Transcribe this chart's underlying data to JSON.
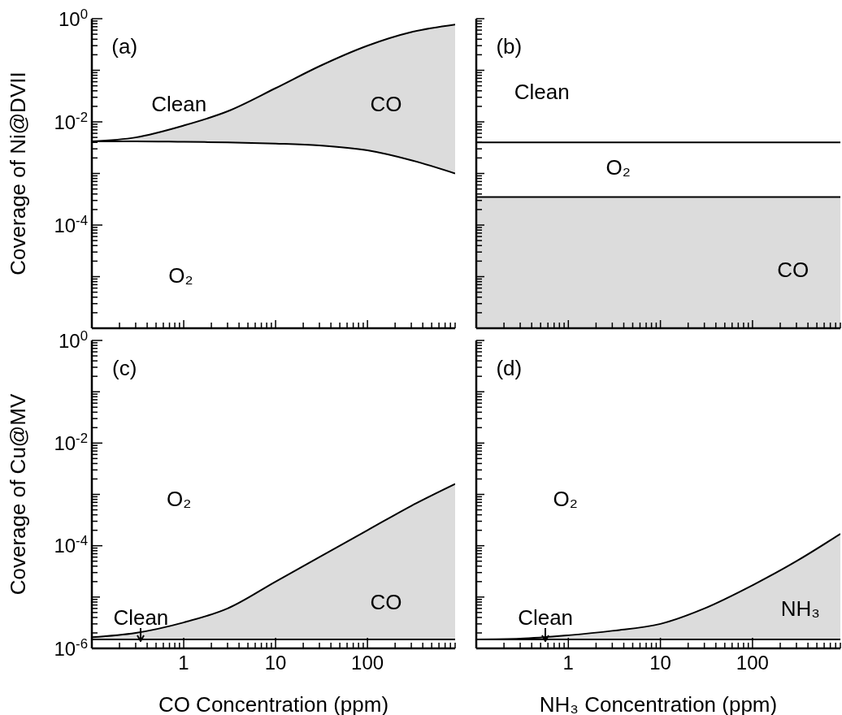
{
  "chart_data": [
    {
      "type": "line",
      "ylabel": "Coverage of Ni@DVII",
      "tick_labels": "y",
      "x": [
        0.1,
        0.3,
        1,
        3,
        10,
        30,
        100,
        300,
        900
      ],
      "xlim": [
        0.1,
        900
      ],
      "ylim": [
        1e-06,
        1
      ],
      "log": "xy",
      "xticks": [
        {
          "value": 0.2,
          "label": null
        },
        {
          "value": 0.3,
          "label": null
        },
        {
          "value": 0.4,
          "label": null
        },
        {
          "value": 0.5,
          "label": null
        },
        {
          "value": 0.6,
          "label": null
        },
        {
          "value": 0.7,
          "label": null
        },
        {
          "value": 0.8,
          "label": null
        },
        {
          "value": 0.9,
          "label": null
        },
        {
          "value": 1,
          "label": null
        },
        {
          "value": 2,
          "label": null
        },
        {
          "value": 3,
          "label": null
        },
        {
          "value": 4,
          "label": null
        },
        {
          "value": 5,
          "label": null
        },
        {
          "value": 6,
          "label": null
        },
        {
          "value": 7,
          "label": null
        },
        {
          "value": 8,
          "label": null
        },
        {
          "value": 9,
          "label": null
        },
        {
          "value": 10,
          "label": null
        },
        {
          "value": 20,
          "label": null
        },
        {
          "value": 30,
          "label": null
        },
        {
          "value": 40,
          "label": null
        },
        {
          "value": 50,
          "label": null
        },
        {
          "value": 60,
          "label": null
        },
        {
          "value": 70,
          "label": null
        },
        {
          "value": 80,
          "label": null
        },
        {
          "value": 90,
          "label": null
        },
        {
          "value": 100,
          "label": null
        },
        {
          "value": 200,
          "label": null
        },
        {
          "value": 300,
          "label": null
        },
        {
          "value": 400,
          "label": null
        },
        {
          "value": 500,
          "label": null
        },
        {
          "value": 600,
          "label": null
        },
        {
          "value": 700,
          "label": null
        },
        {
          "value": 800,
          "label": null
        },
        {
          "value": 900,
          "label": null
        }
      ],
      "yticks": [
        {
          "value": 1e-06,
          "label": null
        },
        {
          "value": 2e-06,
          "label": null
        },
        {
          "value": 3e-06,
          "label": null
        },
        {
          "value": 4e-06,
          "label": null
        },
        {
          "value": 5e-06,
          "label": null
        },
        {
          "value": 6e-06,
          "label": null
        },
        {
          "value": 7e-06,
          "label": null
        },
        {
          "value": 8e-06,
          "label": null
        },
        {
          "value": 9e-06,
          "label": null
        },
        {
          "value": 1e-05,
          "label": null
        },
        {
          "value": 2e-05,
          "label": null
        },
        {
          "value": 3e-05,
          "label": null
        },
        {
          "value": 4e-05,
          "label": null
        },
        {
          "value": 5e-05,
          "label": null
        },
        {
          "value": 6e-05,
          "label": null
        },
        {
          "value": 7e-05,
          "label": null
        },
        {
          "value": 8e-05,
          "label": null
        },
        {
          "value": 9e-05,
          "label": null
        },
        {
          "value": 0.0001,
          "label": "10$^{-4}$"
        },
        {
          "value": 0.0002,
          "label": null
        },
        {
          "value": 0.0003,
          "label": null
        },
        {
          "value": 0.0004,
          "label": null
        },
        {
          "value": 0.0005,
          "label": null
        },
        {
          "value": 0.0006,
          "label": null
        },
        {
          "value": 0.0007,
          "label": null
        },
        {
          "value": 0.0008,
          "label": null
        },
        {
          "value": 0.0009,
          "label": null
        },
        {
          "value": 0.001,
          "label": null
        },
        {
          "value": 0.002,
          "label": null
        },
        {
          "value": 0.003,
          "label": null
        },
        {
          "value": 0.004,
          "label": null
        },
        {
          "value": 0.005,
          "label": null
        },
        {
          "value": 0.006,
          "label": null
        },
        {
          "value": 0.007,
          "label": null
        },
        {
          "value": 0.008,
          "label": null
        },
        {
          "value": 0.009,
          "label": null
        },
        {
          "value": 0.01,
          "label": "10$^{-2}$"
        },
        {
          "value": 0.02,
          "label": null
        },
        {
          "value": 0.03,
          "label": null
        },
        {
          "value": 0.04,
          "label": null
        },
        {
          "value": 0.05,
          "label": null
        },
        {
          "value": 0.06,
          "label": null
        },
        {
          "value": 0.07,
          "label": null
        },
        {
          "value": 0.08,
          "label": null
        },
        {
          "value": 0.09,
          "label": null
        },
        {
          "value": 0.1,
          "label": null
        },
        {
          "value": 0.2,
          "label": null
        },
        {
          "value": 0.3,
          "label": null
        },
        {
          "value": 0.4,
          "label": null
        },
        {
          "value": 0.5,
          "label": null
        },
        {
          "value": 0.6,
          "label": null
        },
        {
          "value": 0.7,
          "label": null
        },
        {
          "value": 0.8,
          "label": null
        },
        {
          "value": 0.9,
          "label": null
        },
        {
          "value": 1,
          "label": "10$^{0}$"
        }
      ],
      "series": [
        {
          "color": "#000000",
          "values": [
            0.0042,
            0.005,
            0.0085,
            0.016,
            0.045,
            0.12,
            0.3,
            0.55,
            0.77
          ],
          "lower": [
            0.0042,
            0.0042,
            0.0041,
            0.004,
            0.0038,
            0.0035,
            0.0028,
            0.0018,
            0.001
          ],
          "upper": [
            0.0042,
            0.005,
            0.0085,
            0.016,
            0.045,
            0.12,
            0.3,
            0.55,
            0.77
          ]
        },
        {
          "color": "#000000",
          "values": [
            0.0042,
            0.0042,
            0.0041,
            0.004,
            0.0038,
            0.0035,
            0.0028,
            0.0018,
            0.001
          ]
        }
      ],
      "annotations": [
        "(a)",
        "Clean",
        "CO",
        "O₂"
      ]
    },
    {
      "type": "line",
      "tick_labels": false,
      "x": [
        0.1,
        900
      ],
      "xlim": [
        0.1,
        900
      ],
      "ylim": [
        1e-06,
        1
      ],
      "log": "xy",
      "xticks": [
        {
          "value": 0.2,
          "label": null
        },
        {
          "value": 0.3,
          "label": null
        },
        {
          "value": 0.4,
          "label": null
        },
        {
          "value": 0.5,
          "label": null
        },
        {
          "value": 0.6,
          "label": null
        },
        {
          "value": 0.7,
          "label": null
        },
        {
          "value": 0.8,
          "label": null
        },
        {
          "value": 0.9,
          "label": null
        },
        {
          "value": 1,
          "label": null
        },
        {
          "value": 2,
          "label": null
        },
        {
          "value": 3,
          "label": null
        },
        {
          "value": 4,
          "label": null
        },
        {
          "value": 5,
          "label": null
        },
        {
          "value": 6,
          "label": null
        },
        {
          "value": 7,
          "label": null
        },
        {
          "value": 8,
          "label": null
        },
        {
          "value": 9,
          "label": null
        },
        {
          "value": 10,
          "label": null
        },
        {
          "value": 20,
          "label": null
        },
        {
          "value": 30,
          "label": null
        },
        {
          "value": 40,
          "label": null
        },
        {
          "value": 50,
          "label": null
        },
        {
          "value": 60,
          "label": null
        },
        {
          "value": 70,
          "label": null
        },
        {
          "value": 80,
          "label": null
        },
        {
          "value": 90,
          "label": null
        },
        {
          "value": 100,
          "label": null
        },
        {
          "value": 200,
          "label": null
        },
        {
          "value": 300,
          "label": null
        },
        {
          "value": 400,
          "label": null
        },
        {
          "value": 500,
          "label": null
        },
        {
          "value": 600,
          "label": null
        },
        {
          "value": 700,
          "label": null
        },
        {
          "value": 800,
          "label": null
        },
        {
          "value": 900,
          "label": null
        }
      ],
      "yticks": [
        {
          "value": 1e-06,
          "label": null
        },
        {
          "value": 2e-06,
          "label": null
        },
        {
          "value": 3e-06,
          "label": null
        },
        {
          "value": 4e-06,
          "label": null
        },
        {
          "value": 5e-06,
          "label": null
        },
        {
          "value": 6e-06,
          "label": null
        },
        {
          "value": 7e-06,
          "label": null
        },
        {
          "value": 8e-06,
          "label": null
        },
        {
          "value": 9e-06,
          "label": null
        },
        {
          "value": 1e-05,
          "label": null
        },
        {
          "value": 2e-05,
          "label": null
        },
        {
          "value": 3e-05,
          "label": null
        },
        {
          "value": 4e-05,
          "label": null
        },
        {
          "value": 5e-05,
          "label": null
        },
        {
          "value": 6e-05,
          "label": null
        },
        {
          "value": 7e-05,
          "label": null
        },
        {
          "value": 8e-05,
          "label": null
        },
        {
          "value": 9e-05,
          "label": null
        },
        {
          "value": 0.0001,
          "label": null
        },
        {
          "value": 0.0002,
          "label": null
        },
        {
          "value": 0.0003,
          "label": null
        },
        {
          "value": 0.0004,
          "label": null
        },
        {
          "value": 0.0005,
          "label": null
        },
        {
          "value": 0.0006,
          "label": null
        },
        {
          "value": 0.0007,
          "label": null
        },
        {
          "value": 0.0008,
          "label": null
        },
        {
          "value": 0.0009,
          "label": null
        },
        {
          "value": 0.001,
          "label": null
        },
        {
          "value": 0.002,
          "label": null
        },
        {
          "value": 0.003,
          "label": null
        },
        {
          "value": 0.004,
          "label": null
        },
        {
          "value": 0.005,
          "label": null
        },
        {
          "value": 0.006,
          "label": null
        },
        {
          "value": 0.007,
          "label": null
        },
        {
          "value": 0.008,
          "label": null
        },
        {
          "value": 0.009,
          "label": null
        },
        {
          "value": 0.01,
          "label": null
        },
        {
          "value": 0.02,
          "label": null
        },
        {
          "value": 0.03,
          "label": null
        },
        {
          "value": 0.04,
          "label": null
        },
        {
          "value": 0.05,
          "label": null
        },
        {
          "value": 0.06,
          "label": null
        },
        {
          "value": 0.07,
          "label": null
        },
        {
          "value": 0.08,
          "label": null
        },
        {
          "value": 0.09,
          "label": null
        },
        {
          "value": 0.1,
          "label": null
        },
        {
          "value": 0.2,
          "label": null
        },
        {
          "value": 0.3,
          "label": null
        },
        {
          "value": 0.4,
          "label": null
        },
        {
          "value": 0.5,
          "label": null
        },
        {
          "value": 0.6,
          "label": null
        },
        {
          "value": 0.7,
          "label": null
        },
        {
          "value": 0.8,
          "label": null
        },
        {
          "value": 0.9,
          "label": null
        },
        {
          "value": 1,
          "label": null
        }
      ],
      "series": [
        {
          "color": "#000000",
          "values": [
            0.00035,
            0.00035
          ],
          "lower": [
            1e-06,
            1e-06
          ],
          "upper": [
            0.00035,
            0.00035
          ]
        },
        {
          "color": "#000000",
          "values": [
            0.004,
            0.004
          ]
        }
      ],
      "annotations": [
        "(b)",
        "Clean",
        "O₂",
        "CO"
      ]
    },
    {
      "type": "line",
      "ylabel": "Coverage of Cu@MV",
      "xlabel": "CO Concentration (ppm)",
      "x": [
        0.1,
        0.3,
        1,
        3,
        10,
        30,
        100,
        300,
        900
      ],
      "xlim": [
        0.1,
        900
      ],
      "ylim": [
        1e-06,
        1
      ],
      "log": "xy",
      "xticks": [
        {
          "value": 0.2,
          "label": null
        },
        {
          "value": 0.3,
          "label": null
        },
        {
          "value": 0.4,
          "label": null
        },
        {
          "value": 0.5,
          "label": null
        },
        {
          "value": 0.6,
          "label": null
        },
        {
          "value": 0.7,
          "label": null
        },
        {
          "value": 0.8,
          "label": null
        },
        {
          "value": 0.9,
          "label": null
        },
        1,
        {
          "value": 2,
          "label": null
        },
        {
          "value": 3,
          "label": null
        },
        {
          "value": 4,
          "label": null
        },
        {
          "value": 5,
          "label": null
        },
        {
          "value": 6,
          "label": null
        },
        {
          "value": 7,
          "label": null
        },
        {
          "value": 8,
          "label": null
        },
        {
          "value": 9,
          "label": null
        },
        10,
        {
          "value": 20,
          "label": null
        },
        {
          "value": 30,
          "label": null
        },
        {
          "value": 40,
          "label": null
        },
        {
          "value": 50,
          "label": null
        },
        {
          "value": 60,
          "label": null
        },
        {
          "value": 70,
          "label": null
        },
        {
          "value": 80,
          "label": null
        },
        {
          "value": 90,
          "label": null
        },
        100,
        {
          "value": 200,
          "label": null
        },
        {
          "value": 300,
          "label": null
        },
        {
          "value": 400,
          "label": null
        },
        {
          "value": 500,
          "label": null
        },
        {
          "value": 600,
          "label": null
        },
        {
          "value": 700,
          "label": null
        },
        {
          "value": 800,
          "label": null
        },
        {
          "value": 900,
          "label": null
        }
      ],
      "yticks": [
        {
          "value": 1e-06,
          "label": "10$^{-6}$"
        },
        {
          "value": 2e-06,
          "label": null
        },
        {
          "value": 3e-06,
          "label": null
        },
        {
          "value": 4e-06,
          "label": null
        },
        {
          "value": 5e-06,
          "label": null
        },
        {
          "value": 6e-06,
          "label": null
        },
        {
          "value": 7e-06,
          "label": null
        },
        {
          "value": 8e-06,
          "label": null
        },
        {
          "value": 9e-06,
          "label": null
        },
        {
          "value": 1e-05,
          "label": null
        },
        {
          "value": 2e-05,
          "label": null
        },
        {
          "value": 3e-05,
          "label": null
        },
        {
          "value": 4e-05,
          "label": null
        },
        {
          "value": 5e-05,
          "label": null
        },
        {
          "value": 6e-05,
          "label": null
        },
        {
          "value": 7e-05,
          "label": null
        },
        {
          "value": 8e-05,
          "label": null
        },
        {
          "value": 9e-05,
          "label": null
        },
        {
          "value": 0.0001,
          "label": "10$^{-4}$"
        },
        {
          "value": 0.0002,
          "label": null
        },
        {
          "value": 0.0003,
          "label": null
        },
        {
          "value": 0.0004,
          "label": null
        },
        {
          "value": 0.0005,
          "label": null
        },
        {
          "value": 0.0006,
          "label": null
        },
        {
          "value": 0.0007,
          "label": null
        },
        {
          "value": 0.0008,
          "label": null
        },
        {
          "value": 0.0009,
          "label": null
        },
        {
          "value": 0.001,
          "label": null
        },
        {
          "value": 0.002,
          "label": null
        },
        {
          "value": 0.003,
          "label": null
        },
        {
          "value": 0.004,
          "label": null
        },
        {
          "value": 0.005,
          "label": null
        },
        {
          "value": 0.006,
          "label": null
        },
        {
          "value": 0.007,
          "label": null
        },
        {
          "value": 0.008,
          "label": null
        },
        {
          "value": 0.009,
          "label": null
        },
        {
          "value": 0.01,
          "label": "10$^{-2}$"
        },
        {
          "value": 0.02,
          "label": null
        },
        {
          "value": 0.03,
          "label": null
        },
        {
          "value": 0.04,
          "label": null
        },
        {
          "value": 0.05,
          "label": null
        },
        {
          "value": 0.06,
          "label": null
        },
        {
          "value": 0.07,
          "label": null
        },
        {
          "value": 0.08,
          "label": null
        },
        {
          "value": 0.09,
          "label": null
        },
        {
          "value": 0.1,
          "label": null
        },
        {
          "value": 0.2,
          "label": null
        },
        {
          "value": 0.3,
          "label": null
        },
        {
          "value": 0.4,
          "label": null
        },
        {
          "value": 0.5,
          "label": null
        },
        {
          "value": 0.6,
          "label": null
        },
        {
          "value": 0.7,
          "label": null
        },
        {
          "value": 0.8,
          "label": null
        },
        {
          "value": 0.9,
          "label": null
        },
        {
          "value": 1,
          "label": "10$^{0}$"
        }
      ],
      "series": [
        {
          "color": "#000000",
          "values": [
            1.65e-06,
            2e-06,
            3.2e-06,
            6e-06,
            2e-05,
            6e-05,
            0.0002,
            0.0006,
            0.0016
          ],
          "lower": [
            1.5e-06,
            1.5e-06,
            1.5e-06,
            1.5e-06,
            1.5e-06,
            1.5e-06,
            1.5e-06,
            1.5e-06,
            1.5e-06
          ],
          "upper": [
            1.65e-06,
            2e-06,
            3.2e-06,
            6e-06,
            2e-05,
            6e-05,
            0.0002,
            0.0006,
            0.0016
          ]
        },
        {
          "color": "#000000",
          "values": [
            1.5e-06,
            1.5e-06,
            1.5e-06,
            1.5e-06,
            1.5e-06,
            1.5e-06,
            1.5e-06,
            1.5e-06,
            1.5e-06
          ]
        }
      ],
      "annotations": [
        "(c)",
        "O₂",
        "CO",
        "Clean"
      ]
    },
    {
      "type": "line",
      "xlabel": "NH₃ Concentration (ppm)",
      "tick_labels": "x",
      "x": [
        0.1,
        0.3,
        1,
        3,
        10,
        30,
        100,
        300,
        900
      ],
      "xlim": [
        0.1,
        900
      ],
      "ylim": [
        1e-06,
        1
      ],
      "log": "xy",
      "xticks": [
        {
          "value": 0.2,
          "label": null
        },
        {
          "value": 0.3,
          "label": null
        },
        {
          "value": 0.4,
          "label": null
        },
        {
          "value": 0.5,
          "label": null
        },
        {
          "value": 0.6,
          "label": null
        },
        {
          "value": 0.7,
          "label": null
        },
        {
          "value": 0.8,
          "label": null
        },
        {
          "value": 0.9,
          "label": null
        },
        1,
        {
          "value": 2,
          "label": null
        },
        {
          "value": 3,
          "label": null
        },
        {
          "value": 4,
          "label": null
        },
        {
          "value": 5,
          "label": null
        },
        {
          "value": 6,
          "label": null
        },
        {
          "value": 7,
          "label": null
        },
        {
          "value": 8,
          "label": null
        },
        {
          "value": 9,
          "label": null
        },
        10,
        {
          "value": 20,
          "label": null
        },
        {
          "value": 30,
          "label": null
        },
        {
          "value": 40,
          "label": null
        },
        {
          "value": 50,
          "label": null
        },
        {
          "value": 60,
          "label": null
        },
        {
          "value": 70,
          "label": null
        },
        {
          "value": 80,
          "label": null
        },
        {
          "value": 90,
          "label": null
        },
        100,
        {
          "value": 200,
          "label": null
        },
        {
          "value": 300,
          "label": null
        },
        {
          "value": 400,
          "label": null
        },
        {
          "value": 500,
          "label": null
        },
        {
          "value": 600,
          "label": null
        },
        {
          "value": 700,
          "label": null
        },
        {
          "value": 800,
          "label": null
        },
        {
          "value": 900,
          "label": null
        }
      ],
      "yticks": [
        {
          "value": 1e-06,
          "label": null
        },
        {
          "value": 2e-06,
          "label": null
        },
        {
          "value": 3e-06,
          "label": null
        },
        {
          "value": 4e-06,
          "label": null
        },
        {
          "value": 5e-06,
          "label": null
        },
        {
          "value": 6e-06,
          "label": null
        },
        {
          "value": 7e-06,
          "label": null
        },
        {
          "value": 8e-06,
          "label": null
        },
        {
          "value": 9e-06,
          "label": null
        },
        {
          "value": 1e-05,
          "label": null
        },
        {
          "value": 2e-05,
          "label": null
        },
        {
          "value": 3e-05,
          "label": null
        },
        {
          "value": 4e-05,
          "label": null
        },
        {
          "value": 5e-05,
          "label": null
        },
        {
          "value": 6e-05,
          "label": null
        },
        {
          "value": 7e-05,
          "label": null
        },
        {
          "value": 8e-05,
          "label": null
        },
        {
          "value": 9e-05,
          "label": null
        },
        {
          "value": 0.0001,
          "label": null
        },
        {
          "value": 0.0002,
          "label": null
        },
        {
          "value": 0.0003,
          "label": null
        },
        {
          "value": 0.0004,
          "label": null
        },
        {
          "value": 0.0005,
          "label": null
        },
        {
          "value": 0.0006,
          "label": null
        },
        {
          "value": 0.0007,
          "label": null
        },
        {
          "value": 0.0008,
          "label": null
        },
        {
          "value": 0.0009,
          "label": null
        },
        {
          "value": 0.001,
          "label": null
        },
        {
          "value": 0.002,
          "label": null
        },
        {
          "value": 0.003,
          "label": null
        },
        {
          "value": 0.004,
          "label": null
        },
        {
          "value": 0.005,
          "label": null
        },
        {
          "value": 0.006,
          "label": null
        },
        {
          "value": 0.007,
          "label": null
        },
        {
          "value": 0.008,
          "label": null
        },
        {
          "value": 0.009,
          "label": null
        },
        {
          "value": 0.01,
          "label": null
        },
        {
          "value": 0.02,
          "label": null
        },
        {
          "value": 0.03,
          "label": null
        },
        {
          "value": 0.04,
          "label": null
        },
        {
          "value": 0.05,
          "label": null
        },
        {
          "value": 0.06,
          "label": null
        },
        {
          "value": 0.07,
          "label": null
        },
        {
          "value": 0.08,
          "label": null
        },
        {
          "value": 0.09,
          "label": null
        },
        {
          "value": 0.1,
          "label": null
        },
        {
          "value": 0.2,
          "label": null
        },
        {
          "value": 0.3,
          "label": null
        },
        {
          "value": 0.4,
          "label": null
        },
        {
          "value": 0.5,
          "label": null
        },
        {
          "value": 0.6,
          "label": null
        },
        {
          "value": 0.7,
          "label": null
        },
        {
          "value": 0.8,
          "label": null
        },
        {
          "value": 0.9,
          "label": null
        },
        {
          "value": 1,
          "label": null
        }
      ],
      "series": [
        {
          "color": "#000000",
          "values": [
            1.5e-06,
            1.55e-06,
            1.8e-06,
            2.2e-06,
            3e-06,
            6e-06,
            1.7e-05,
            5e-05,
            0.00017
          ],
          "lower": [
            1.5e-06,
            1.5e-06,
            1.5e-06,
            1.5e-06,
            1.5e-06,
            1.5e-06,
            1.5e-06,
            1.5e-06,
            1.5e-06
          ],
          "upper": [
            1.5e-06,
            1.55e-06,
            1.8e-06,
            2.2e-06,
            3e-06,
            6e-06,
            1.7e-05,
            5e-05,
            0.00017
          ]
        },
        {
          "color": "#000000",
          "values": [
            1.5e-06,
            1.5e-06,
            1.5e-06,
            1.5e-06,
            1.5e-06,
            1.5e-06,
            1.5e-06,
            1.5e-06,
            1.5e-06
          ]
        }
      ],
      "annotations": [
        "(d)",
        "O₂",
        "NH₃",
        "Clean"
      ]
    }
  ]
}
